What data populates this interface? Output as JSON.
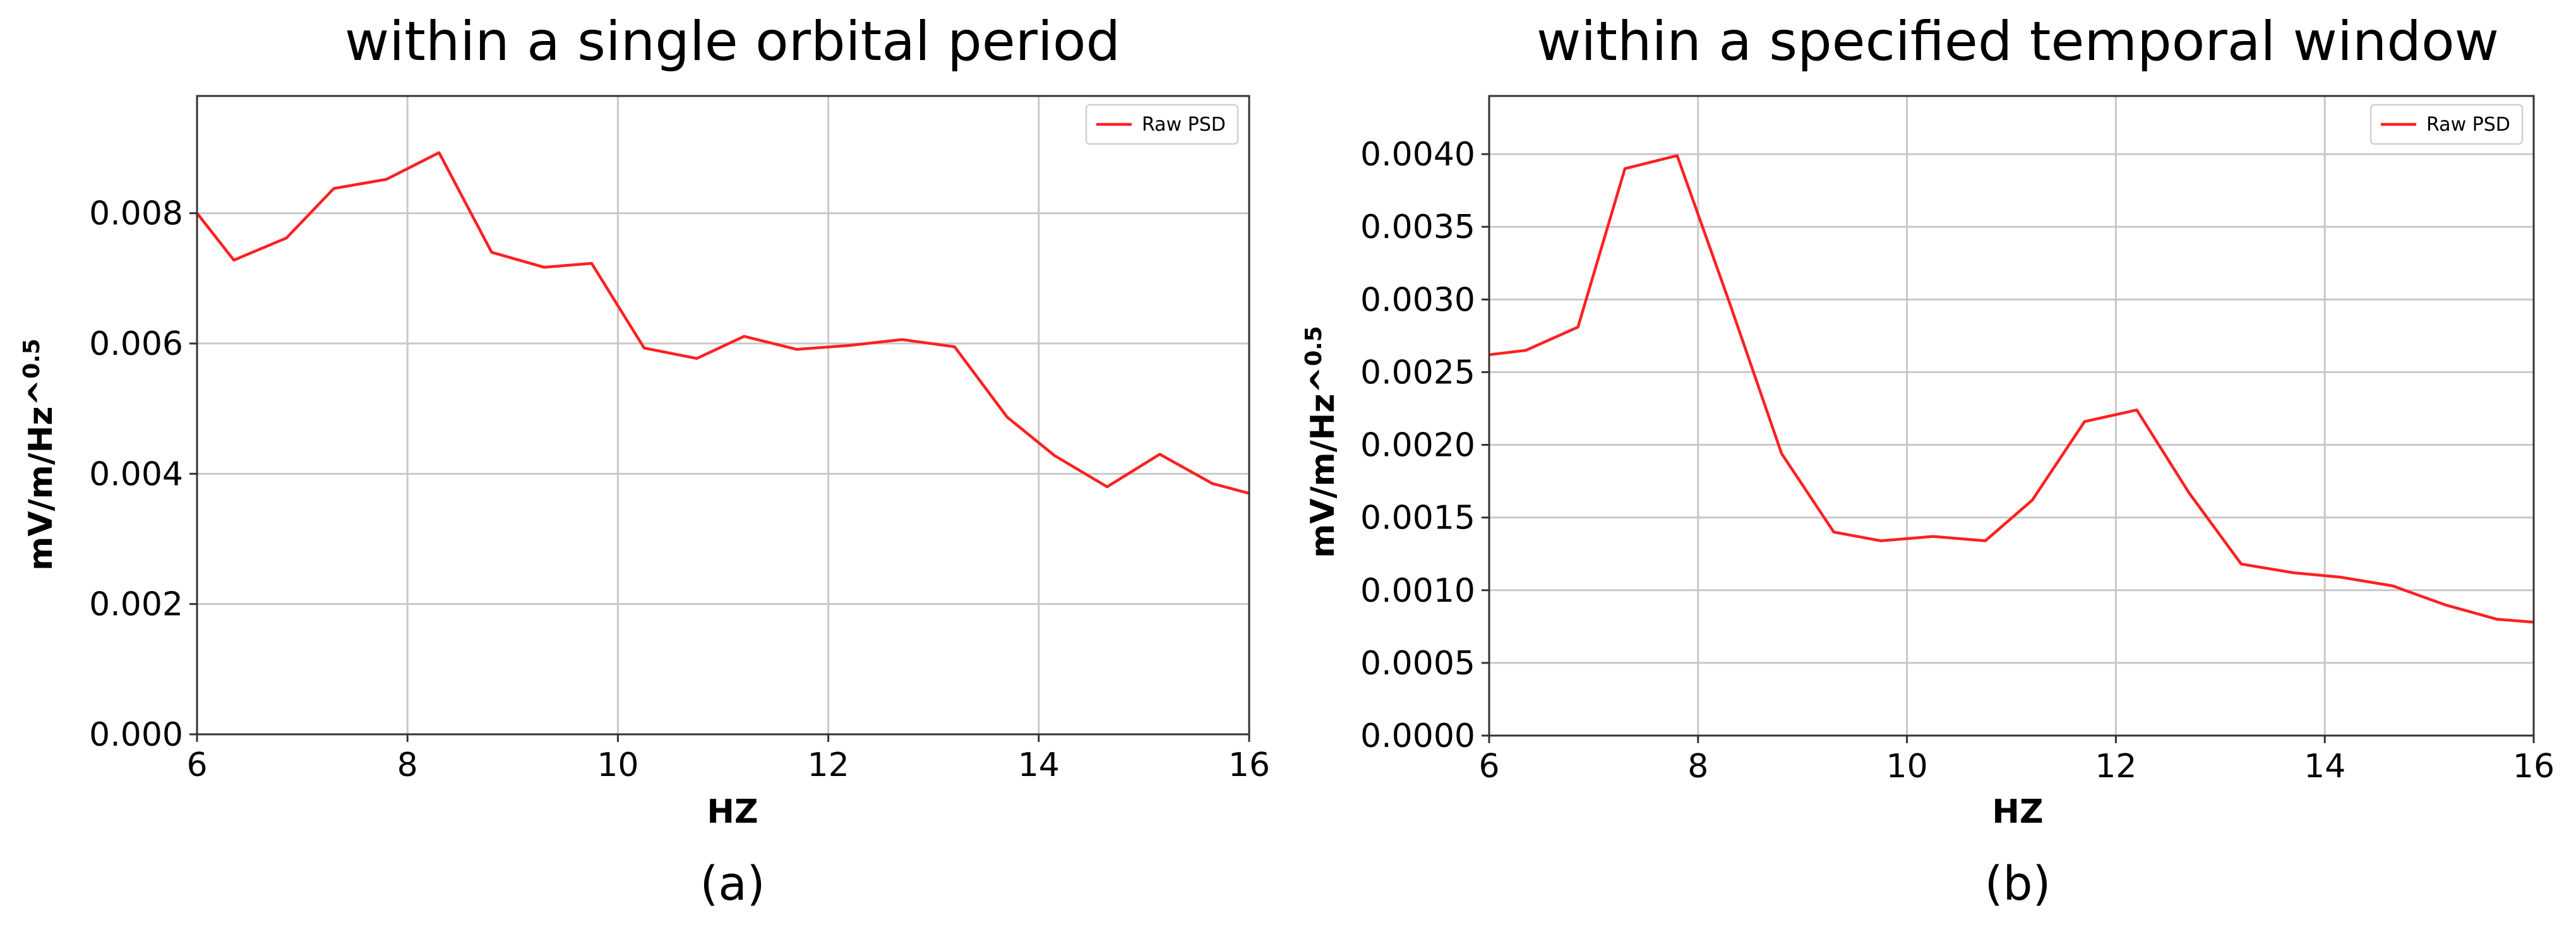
{
  "chart_data": [
    {
      "type": "line",
      "title": "within a single orbital period",
      "caption": "(a)",
      "xlabel": "HZ",
      "ylabel": "mV/m/Hz^",
      "ylabel_sup": "0.5",
      "xlim": [
        6,
        16
      ],
      "ylim": [
        0,
        0.0098
      ],
      "xticks": [
        6,
        8,
        10,
        12,
        14,
        16
      ],
      "xtick_labels": [
        "6",
        "8",
        "10",
        "12",
        "14",
        "16"
      ],
      "yticks": [
        0,
        0.002,
        0.004,
        0.006,
        0.008
      ],
      "ytick_labels": [
        "0.000",
        "0.002",
        "0.004",
        "0.006",
        "0.008"
      ],
      "grid": true,
      "legend_position": "top-right",
      "series": [
        {
          "name": "Raw PSD",
          "color": "#ff2020",
          "x": [
            6.0,
            6.35,
            6.85,
            7.3,
            7.8,
            8.3,
            8.8,
            9.3,
            9.75,
            10.25,
            10.75,
            11.2,
            11.7,
            12.2,
            12.7,
            13.2,
            13.7,
            14.15,
            14.65,
            15.15,
            15.65,
            16.0
          ],
          "y": [
            0.008,
            0.00728,
            0.00762,
            0.00838,
            0.00852,
            0.00893,
            0.0074,
            0.00717,
            0.00723,
            0.00593,
            0.00577,
            0.00611,
            0.00591,
            0.00597,
            0.00606,
            0.00595,
            0.00487,
            0.00428,
            0.0038,
            0.0043,
            0.00385,
            0.0037
          ]
        }
      ]
    },
    {
      "type": "line",
      "title": "within a specified temporal window",
      "caption": "(b)",
      "xlabel": "HZ",
      "ylabel": "mV/m/Hz^",
      "ylabel_sup": "0.5",
      "xlim": [
        6,
        16
      ],
      "ylim": [
        0,
        0.0044
      ],
      "xticks": [
        6,
        8,
        10,
        12,
        14,
        16
      ],
      "xtick_labels": [
        "6",
        "8",
        "10",
        "12",
        "14",
        "16"
      ],
      "yticks": [
        0,
        0.0005,
        0.001,
        0.0015,
        0.002,
        0.0025,
        0.003,
        0.0035,
        0.004
      ],
      "ytick_labels": [
        "0.0000",
        "0.0005",
        "0.0010",
        "0.0015",
        "0.0020",
        "0.0025",
        "0.0030",
        "0.0035",
        "0.0040"
      ],
      "grid": true,
      "legend_position": "top-right",
      "series": [
        {
          "name": "Raw PSD",
          "color": "#ff2020",
          "x": [
            6.0,
            6.35,
            6.85,
            7.3,
            7.8,
            8.3,
            8.8,
            9.3,
            9.75,
            10.25,
            10.75,
            11.2,
            11.7,
            12.2,
            12.7,
            13.2,
            13.7,
            14.15,
            14.65,
            15.15,
            15.65,
            16.0
          ],
          "y": [
            0.00262,
            0.00265,
            0.00281,
            0.0039,
            0.00399,
            0.00298,
            0.00194,
            0.0014,
            0.00134,
            0.00137,
            0.00134,
            0.00162,
            0.00216,
            0.00224,
            0.00167,
            0.00118,
            0.00112,
            0.00109,
            0.00103,
            0.0009,
            0.0008,
            0.00078
          ]
        }
      ]
    }
  ]
}
